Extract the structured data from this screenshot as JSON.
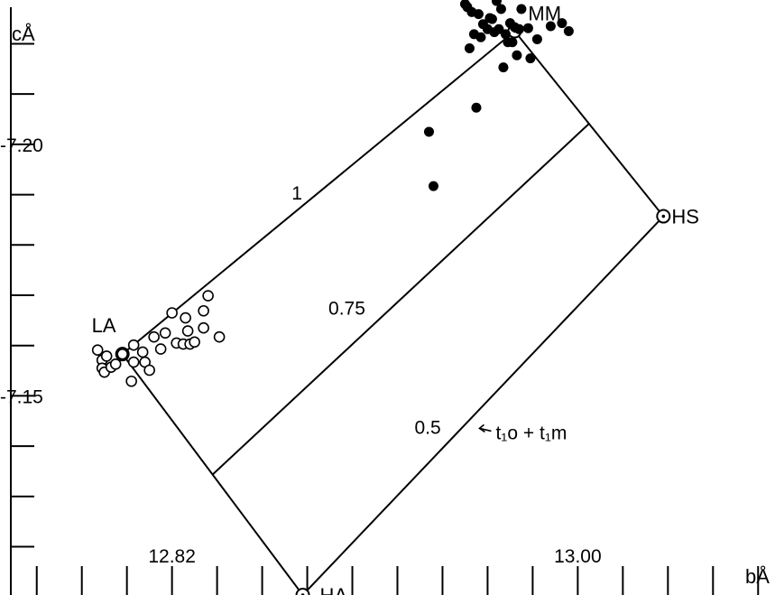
{
  "chart_data": {
    "type": "scatter",
    "title": "",
    "xlabel": "bÅ",
    "ylabel": "cÅ",
    "xlim": [
      12.7485,
      13.0875
    ],
    "ylim": [
      7.1104,
      7.2287
    ],
    "x_tick_step": 0.02,
    "x_ticks_labeled": [
      {
        "value": 12.82,
        "label": "12.82"
      },
      {
        "value": 13.0,
        "label": "13.00"
      }
    ],
    "y_tick_step": 0.01,
    "y_ticks_labeled": [
      {
        "value": 7.2,
        "label": "-7.20"
      },
      {
        "value": 7.15,
        "label": "-7.15"
      }
    ],
    "end_members": [
      {
        "name": "LA",
        "label": "LA",
        "x": 12.798,
        "y": 7.1583
      },
      {
        "name": "MM",
        "label": "MM",
        "x": 12.972,
        "y": 7.2225
      },
      {
        "name": "HS",
        "label": "HS",
        "x": 13.038,
        "y": 7.1857
      },
      {
        "name": "HA",
        "label": "HA",
        "x": 12.878,
        "y": 7.1104
      }
    ],
    "contours": [
      {
        "label": "1",
        "from": "LA",
        "to": "MM"
      },
      {
        "label": "0.75",
        "t": 0.75
      },
      {
        "label": "0.5",
        "from": "HA",
        "to": "HS"
      }
    ],
    "annotation": {
      "text": "t₁o + t₁m",
      "points_to": "0.5"
    },
    "series": [
      {
        "marker": "open-circle",
        "points": [
          [
            12.787,
            7.1591
          ],
          [
            12.789,
            7.1571
          ],
          [
            12.789,
            7.1555
          ],
          [
            12.79,
            7.1547
          ],
          [
            12.791,
            7.1579
          ],
          [
            12.793,
            7.1557
          ],
          [
            12.795,
            7.1563
          ],
          [
            12.798,
            7.1583
          ],
          [
            12.802,
            7.1529
          ],
          [
            12.803,
            7.1601
          ],
          [
            12.803,
            7.1567
          ],
          [
            12.807,
            7.1587
          ],
          [
            12.808,
            7.1567
          ],
          [
            12.81,
            7.1551
          ],
          [
            12.812,
            7.1617
          ],
          [
            12.815,
            7.1593
          ],
          [
            12.817,
            7.1625
          ],
          [
            12.82,
            7.1665
          ],
          [
            12.822,
            7.1605
          ],
          [
            12.825,
            7.1603
          ],
          [
            12.826,
            7.1655
          ],
          [
            12.827,
            7.1629
          ],
          [
            12.828,
            7.1603
          ],
          [
            12.83,
            7.1607
          ],
          [
            12.834,
            7.1669
          ],
          [
            12.834,
            7.1635
          ],
          [
            12.836,
            7.1699
          ],
          [
            12.841,
            7.1617
          ]
        ]
      },
      {
        "marker": "filled-circle",
        "points": [
          [
            12.934,
            7.2025
          ],
          [
            12.936,
            7.1917
          ],
          [
            12.95,
            7.2279
          ],
          [
            12.951,
            7.2273
          ],
          [
            12.952,
            7.2191
          ],
          [
            12.953,
            7.2263
          ],
          [
            12.954,
            7.2219
          ],
          [
            12.955,
            7.2073
          ],
          [
            12.956,
            7.2259
          ],
          [
            12.957,
            7.2213
          ],
          [
            12.958,
            7.2239
          ],
          [
            12.96,
            7.2229
          ],
          [
            12.961,
            7.2251
          ],
          [
            12.962,
            7.2249
          ],
          [
            12.963,
            7.2223
          ],
          [
            12.964,
            7.2285
          ],
          [
            12.965,
            7.2229
          ],
          [
            12.966,
            7.2269
          ],
          [
            12.967,
            7.2153
          ],
          [
            12.968,
            7.2219
          ],
          [
            12.969,
            7.2203
          ],
          [
            12.97,
            7.2241
          ],
          [
            12.971,
            7.2203
          ],
          [
            12.972,
            7.2233
          ],
          [
            12.973,
            7.2177
          ],
          [
            12.974,
            7.2229
          ],
          [
            12.975,
            7.2269
          ],
          [
            12.978,
            7.2231
          ],
          [
            12.979,
            7.2171
          ],
          [
            12.982,
            7.2209
          ],
          [
            12.988,
            7.2235
          ],
          [
            12.993,
            7.2241
          ],
          [
            12.996,
            7.2225
          ]
        ]
      }
    ]
  }
}
